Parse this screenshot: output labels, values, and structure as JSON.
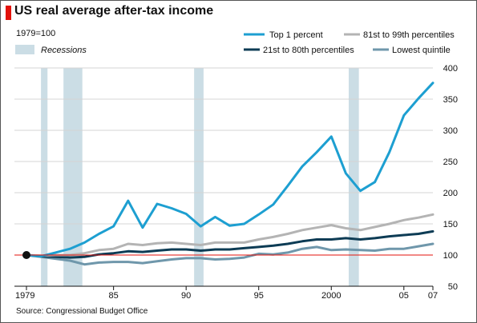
{
  "header": {
    "title": "US real average after-tax income",
    "subtitle": "1979=100"
  },
  "footer": {
    "source": "Source: Congressional Budget Office"
  },
  "colors": {
    "accent_red": "#e3120b",
    "recession": "#cbdde5",
    "baseline": "#e3120b",
    "grid": "#d4d4d4"
  },
  "chart_data": {
    "type": "line",
    "title": "US real average after-tax income",
    "subtitle": "1979=100",
    "xlim": [
      1979,
      2007
    ],
    "ylim": [
      50,
      400
    ],
    "x_ticks": [
      {
        "value": 1979,
        "label": "1979"
      },
      {
        "value": 1985,
        "label": "85"
      },
      {
        "value": 1990,
        "label": "90"
      },
      {
        "value": 1995,
        "label": "95"
      },
      {
        "value": 2000,
        "label": "2000"
      },
      {
        "value": 2005,
        "label": "05"
      },
      {
        "value": 2007,
        "label": "07"
      }
    ],
    "y_ticks": [
      50,
      100,
      150,
      200,
      250,
      300,
      350,
      400
    ],
    "grid": true,
    "legend_position": "top-right",
    "recession_legend_label": "Recessions",
    "recessions": [
      [
        1980.0,
        1980.45
      ],
      [
        1981.55,
        1982.85
      ],
      [
        1990.55,
        1991.2
      ],
      [
        2001.2,
        2001.9
      ]
    ],
    "x": [
      1979,
      1980,
      1981,
      1982,
      1983,
      1984,
      1985,
      1986,
      1987,
      1988,
      1989,
      1990,
      1991,
      1992,
      1993,
      1994,
      1995,
      1996,
      1997,
      1998,
      1999,
      2000,
      2001,
      2002,
      2003,
      2004,
      2005,
      2006,
      2007
    ],
    "series": [
      {
        "name": "Top 1 percent",
        "color": "#1d9fd1",
        "width": 3,
        "values": [
          100,
          98,
          104,
          110,
          120,
          134,
          146,
          187,
          144,
          182,
          175,
          166,
          146,
          161,
          147,
          150,
          165,
          181,
          211,
          242,
          265,
          290,
          231,
          203,
          217,
          265,
          324,
          351,
          376
        ]
      },
      {
        "name": "81st to 99th percentiles",
        "color": "#b4b4b4",
        "width": 3,
        "values": [
          100,
          99,
          100,
          100,
          103,
          108,
          110,
          118,
          116,
          119,
          120,
          118,
          116,
          120,
          120,
          120,
          125,
          129,
          134,
          140,
          144,
          148,
          143,
          140,
          145,
          150,
          156,
          160,
          165
        ]
      },
      {
        "name": "21st to 80th percentiles",
        "color": "#0d3c55",
        "width": 3,
        "values": [
          100,
          98,
          97,
          96,
          97,
          101,
          103,
          106,
          105,
          107,
          109,
          109,
          107,
          109,
          109,
          111,
          113,
          115,
          118,
          122,
          125,
          125,
          127,
          125,
          127,
          130,
          132,
          134,
          138
        ]
      },
      {
        "name": "Lowest quintile",
        "color": "#6f97ab",
        "width": 3,
        "values": [
          100,
          97,
          94,
          91,
          85,
          88,
          89,
          89,
          87,
          90,
          93,
          95,
          95,
          93,
          94,
          96,
          102,
          101,
          104,
          110,
          113,
          108,
          109,
          108,
          107,
          110,
          110,
          114,
          118
        ]
      }
    ]
  }
}
